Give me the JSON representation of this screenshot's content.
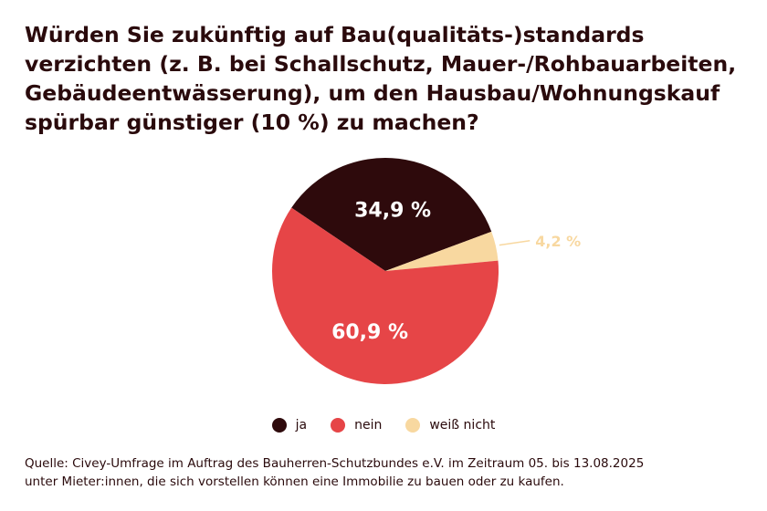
{
  "title_lines": [
    "Würden Sie zukünftig auf Bau(qualitäts-)standards",
    "verzichten (z. B. bei Schallschutz, Mauer-/Rohbauarbeiten,",
    "Gebäudeentwässerung), um den Hausbau/Wohnungskauf",
    "spürbar günstiger (10 %) zu machen?"
  ],
  "chart_data": {
    "type": "pie",
    "slices": [
      {
        "name": "ja",
        "value": 34.9,
        "label": "34,9 %",
        "color": "#2e0a0c"
      },
      {
        "name": "weiß nicht",
        "value": 4.2,
        "label": "4,2 %",
        "color": "#f8d8a0"
      },
      {
        "name": "nein",
        "value": 60.9,
        "label": "60,9 %",
        "color": "#e64547"
      }
    ],
    "legend_position": "bottom",
    "legend": [
      {
        "label": "ja",
        "color": "#2e0a0c"
      },
      {
        "label": "nein",
        "color": "#e64547"
      },
      {
        "label": "weiß nicht",
        "color": "#f8d8a0"
      }
    ]
  },
  "source_lines": [
    "Quelle: Civey-Umfrage im Auftrag des Bauherren-Schutzbundes e.V. im Zeitraum 05. bis 13.08.2025",
    "unter Mieter:innen, die sich vorstellen können eine Immobilie zu bauen oder zu kaufen."
  ]
}
